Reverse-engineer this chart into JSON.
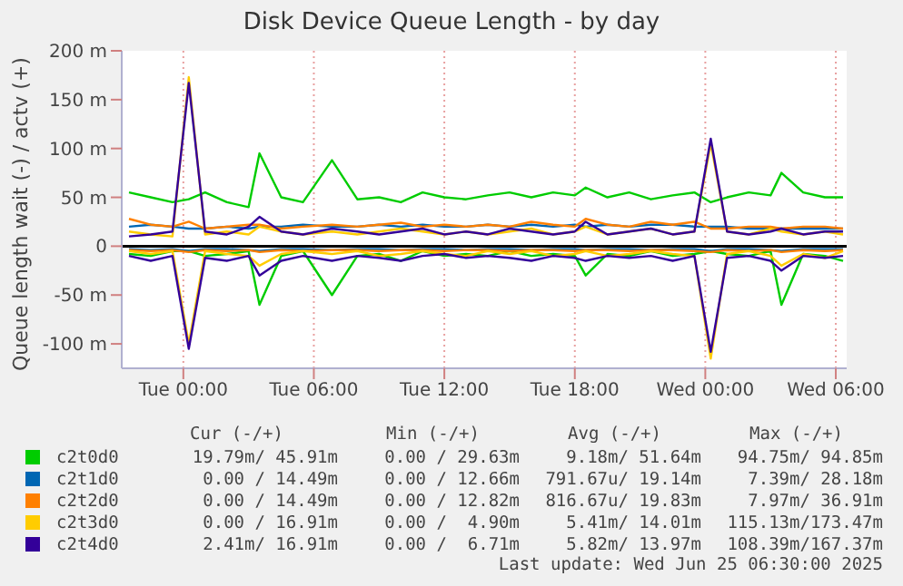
{
  "chart_data": {
    "type": "line",
    "title": "Disk Device Queue Length - by day",
    "ylabel": "Queue length wait (-) / actv (+)",
    "x": [
      "2025-06-23T21:30",
      "2025-06-23T22:30",
      "2025-06-23T23:30",
      "2025-06-24T00:15",
      "2025-06-24T01:00",
      "2025-06-24T02:00",
      "2025-06-24T03:00",
      "2025-06-24T03:30",
      "2025-06-24T04:30",
      "2025-06-24T05:30",
      "2025-06-24T06:50",
      "2025-06-24T08:00",
      "2025-06-24T09:00",
      "2025-06-24T10:00",
      "2025-06-24T11:00",
      "2025-06-24T12:00",
      "2025-06-24T13:00",
      "2025-06-24T14:00",
      "2025-06-24T15:00",
      "2025-06-24T16:00",
      "2025-06-24T17:00",
      "2025-06-24T18:00",
      "2025-06-24T18:30",
      "2025-06-24T19:30",
      "2025-06-24T20:30",
      "2025-06-24T21:30",
      "2025-06-24T22:30",
      "2025-06-24T23:30",
      "2025-06-25T00:15",
      "2025-06-25T01:00",
      "2025-06-25T02:00",
      "2025-06-25T03:00",
      "2025-06-25T03:30",
      "2025-06-25T04:30",
      "2025-06-25T05:30",
      "2025-06-25T06:20"
    ],
    "xlim": [
      "2025-06-23T21:10",
      "2025-06-25T06:30"
    ],
    "xticks": [
      {
        "value": "2025-06-24T00:00",
        "label": "Tue 00:00"
      },
      {
        "value": "2025-06-24T06:00",
        "label": "Tue 06:00"
      },
      {
        "value": "2025-06-24T12:00",
        "label": "Tue 12:00"
      },
      {
        "value": "2025-06-24T18:00",
        "label": "Tue 18:00"
      },
      {
        "value": "2025-06-25T00:00",
        "label": "Wed 00:00"
      },
      {
        "value": "2025-06-25T06:00",
        "label": "Wed 06:00"
      }
    ],
    "ylim": [
      -125,
      200
    ],
    "yticks": [
      {
        "value": -100,
        "label": "-100 m"
      },
      {
        "value": -50,
        "label": "-50 m"
      },
      0,
      {
        "value": 50,
        "label": "50 m"
      },
      {
        "value": 100,
        "label": "100 m"
      },
      {
        "value": 150,
        "label": "150 m"
      },
      {
        "value": 200,
        "label": "200 m"
      }
    ],
    "grid": true,
    "legend": "bottom",
    "marker": "none",
    "line_style": "solid",
    "ref_lines": [
      {
        "axis": "y",
        "value": 0,
        "color": "#000000"
      }
    ],
    "series": [
      {
        "name": "c2t0d0",
        "color": "#00cc00",
        "values": [
          55,
          50,
          45,
          48,
          55,
          45,
          40,
          95,
          50,
          45,
          88,
          48,
          50,
          45,
          55,
          50,
          48,
          52,
          55,
          50,
          55,
          52,
          60,
          50,
          55,
          48,
          52,
          55,
          45,
          50,
          55,
          52,
          75,
          55,
          50,
          50
        ]
      },
      {
        "name": "c2t1d0",
        "color": "#0066b3",
        "values": [
          20,
          22,
          20,
          18,
          18,
          20,
          18,
          20,
          20,
          22,
          20,
          20,
          22,
          20,
          22,
          20,
          20,
          22,
          20,
          22,
          20,
          22,
          20,
          22,
          20,
          22,
          22,
          20,
          20,
          20,
          18,
          18,
          18,
          18,
          18,
          18
        ]
      },
      {
        "name": "c2t2d0",
        "color": "#ff8000",
        "values": [
          28,
          22,
          20,
          25,
          18,
          20,
          22,
          22,
          18,
          20,
          22,
          20,
          22,
          24,
          20,
          22,
          20,
          22,
          20,
          25,
          22,
          20,
          28,
          22,
          20,
          25,
          22,
          25,
          18,
          18,
          20,
          20,
          18,
          20,
          20,
          18
        ]
      },
      {
        "name": "c2t3d0",
        "color": "#ffcc00",
        "values": [
          15,
          12,
          10,
          173,
          12,
          15,
          12,
          20,
          15,
          12,
          15,
          12,
          15,
          18,
          15,
          12,
          15,
          12,
          15,
          18,
          12,
          15,
          20,
          12,
          15,
          18,
          12,
          15,
          105,
          15,
          12,
          18,
          15,
          12,
          15,
          12
        ]
      },
      {
        "name": "c2t4d0",
        "color": "#330099",
        "values": [
          10,
          12,
          15,
          167,
          15,
          12,
          20,
          30,
          15,
          12,
          18,
          15,
          12,
          15,
          18,
          12,
          15,
          12,
          18,
          15,
          12,
          15,
          25,
          12,
          15,
          18,
          12,
          15,
          110,
          15,
          12,
          15,
          18,
          12,
          15,
          15
        ]
      },
      {
        "color": "#00cc00",
        "values": [
          -8,
          -10,
          -5,
          -5,
          -10,
          -8,
          -5,
          -60,
          -10,
          -5,
          -50,
          -10,
          -8,
          -15,
          -5,
          -10,
          -8,
          -10,
          -5,
          -10,
          -8,
          -10,
          -30,
          -8,
          -10,
          -5,
          -10,
          -8,
          -5,
          -8,
          -10,
          -5,
          -60,
          -8,
          -10,
          -15
        ]
      },
      {
        "color": "#0066b3",
        "values": [
          -3,
          -4,
          -3,
          -5,
          -3,
          -3,
          -4,
          -5,
          -3,
          -3,
          -4,
          -3,
          -3,
          -4,
          -3,
          -3,
          -4,
          -3,
          -3,
          -4,
          -3,
          -3,
          -4,
          -3,
          -3,
          -4,
          -3,
          -3,
          -5,
          -3,
          -3,
          -4,
          -5,
          -3,
          -3,
          -3
        ]
      },
      {
        "color": "#ff8000",
        "values": [
          -4,
          -5,
          -4,
          -6,
          -4,
          -5,
          -4,
          -6,
          -4,
          -5,
          -4,
          -4,
          -5,
          -4,
          -4,
          -5,
          -4,
          -4,
          -5,
          -4,
          -4,
          -5,
          -4,
          -4,
          -5,
          -4,
          -4,
          -5,
          -6,
          -4,
          -5,
          -4,
          -6,
          -4,
          -5,
          -4
        ]
      },
      {
        "color": "#ffcc00",
        "values": [
          -5,
          -8,
          -5,
          -100,
          -5,
          -8,
          -10,
          -20,
          -8,
          -5,
          -8,
          -5,
          -10,
          -8,
          -5,
          -8,
          -10,
          -5,
          -8,
          -5,
          -10,
          -8,
          -5,
          -10,
          -8,
          -5,
          -8,
          -10,
          -115,
          -8,
          -5,
          -10,
          -20,
          -8,
          -12,
          -5
        ]
      },
      {
        "color": "#330099",
        "values": [
          -10,
          -15,
          -10,
          -105,
          -12,
          -15,
          -10,
          -30,
          -15,
          -10,
          -15,
          -10,
          -12,
          -15,
          -10,
          -8,
          -12,
          -10,
          -12,
          -15,
          -10,
          -12,
          -15,
          -10,
          -12,
          -10,
          -15,
          -10,
          -108,
          -12,
          -10,
          -15,
          -25,
          -10,
          -12,
          -10
        ]
      }
    ],
    "annotations": [
      "Cur (-/+)",
      "Min (-/+)",
      "Avg (-/+)",
      "Max (-/+)",
      "19.79m/ 45.91m",
      "0.00 / 29.63m",
      "9.18m/ 51.64m",
      "94.75m/ 94.85m",
      "0.00 / 14.49m",
      "0.00 / 12.66m",
      "791.67u/ 19.14m",
      "7.39m/ 28.18m",
      "0.00 / 14.49m",
      "0.00 / 12.82m",
      "816.67u/ 19.83m",
      "7.97m/ 36.91m",
      "0.00 / 16.91m",
      "0.00 /  4.90m",
      "5.41m/ 14.01m",
      "115.13m/173.47m",
      "2.41m/ 16.91m",
      "0.00 /  6.71m",
      "5.82m/ 13.97m",
      "108.39m/167.37m",
      "Last update: Wed Jun 25 06:30:00 2025"
    ]
  }
}
